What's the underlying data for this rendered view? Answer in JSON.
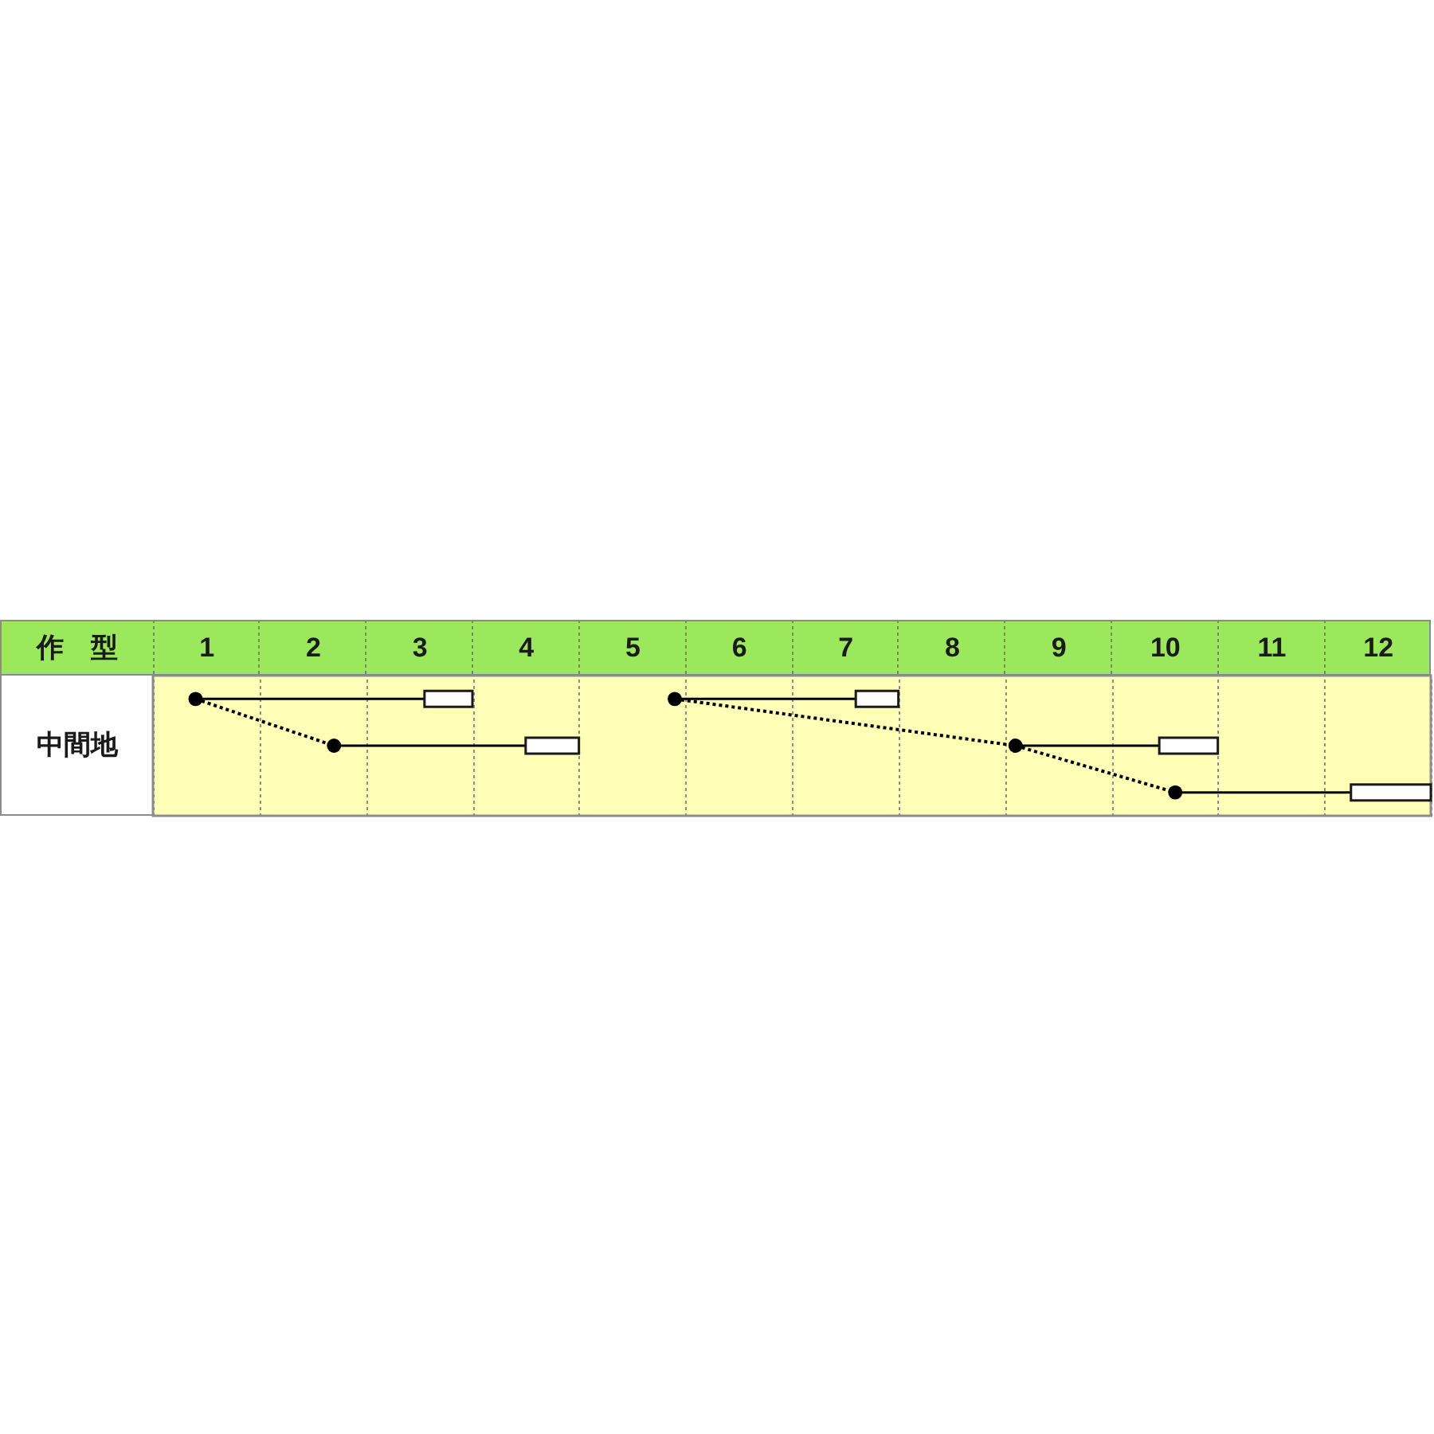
{
  "chart_data": {
    "type": "bar",
    "orientation": "horizontal",
    "ylabel": "作　型",
    "categories": [
      null,
      "中間地",
      null
    ],
    "xlim": [
      1,
      13
    ],
    "xticks": [
      {
        "value": 1,
        "label": null
      },
      {
        "value": 1.5,
        "label": "1"
      },
      {
        "value": 2,
        "label": null
      },
      {
        "value": 2.5,
        "label": "2"
      },
      {
        "value": 3,
        "label": null
      },
      {
        "value": 3.5,
        "label": "3"
      },
      {
        "value": 4,
        "label": null
      },
      {
        "value": 4.5,
        "label": "4"
      },
      {
        "value": 5,
        "label": null
      },
      {
        "value": 5.5,
        "label": "5"
      },
      {
        "value": 6,
        "label": null
      },
      {
        "value": 6.5,
        "label": "6"
      },
      {
        "value": 7,
        "label": null
      },
      {
        "value": 7.5,
        "label": "7"
      },
      {
        "value": 8,
        "label": null
      },
      {
        "value": 8.5,
        "label": "8"
      },
      {
        "value": 9,
        "label": null
      },
      {
        "value": 9.5,
        "label": "9"
      },
      {
        "value": 10,
        "label": null
      },
      {
        "value": 10.5,
        "label": "10"
      },
      {
        "value": 11,
        "label": null
      },
      {
        "value": 11.5,
        "label": "11"
      },
      {
        "value": 12,
        "label": null
      },
      {
        "value": 12.5,
        "label": "12"
      },
      {
        "value": 13,
        "label": null
      }
    ],
    "grid": "x",
    "series": [
      {
        "type": "line",
        "line_style": "dotted",
        "marker": "circle",
        "color": "#000000",
        "values": [
          1.4,
          2.7,
          null
        ],
        "errors": [
          [
            1.4,
            3.55
          ],
          [
            2.7,
            4.5
          ],
          null
        ]
      },
      {
        "type": "line",
        "line_style": "dotted",
        "marker": "circle",
        "color": "#000000",
        "values": [
          5.9,
          9.1,
          10.6
        ],
        "errors": [
          [
            5.9,
            7.6
          ],
          [
            9.1,
            10.45
          ],
          [
            10.6,
            12.25
          ]
        ]
      },
      {
        "type": "bar",
        "color": "#ffffff",
        "base": [
          3.55,
          4.5,
          12.25
        ],
        "values": [
          0.45,
          0.5,
          0.75
        ]
      },
      {
        "type": "bar",
        "color": "#ffffff",
        "base": [
          7.6,
          10.45,
          null
        ],
        "values": [
          0.4,
          0.55,
          null
        ]
      }
    ]
  }
}
